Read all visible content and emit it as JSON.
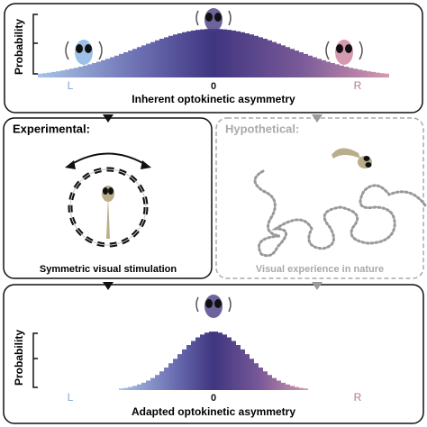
{
  "panels": {
    "top": {
      "y_label": "Probability",
      "axis_labels": [
        "L",
        "0",
        "R"
      ],
      "caption": "Inherent optokinetic asymmetry"
    },
    "experimental": {
      "title": "Experimental:",
      "caption": "Symmetric visual stimulation"
    },
    "hypothetical": {
      "title": "Hypothetical:",
      "caption": "Visual experience in nature"
    },
    "bottom": {
      "y_label": "Probability",
      "axis_labels": [
        "L",
        "0",
        "R"
      ],
      "caption": "Adapted optokinetic asymmetry"
    }
  }
}
